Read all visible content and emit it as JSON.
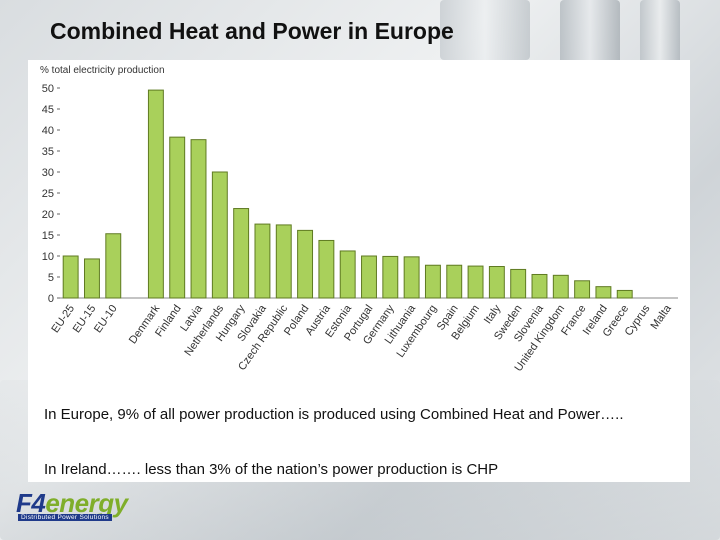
{
  "slide": {
    "title": "Combined Heat and Power in Europe",
    "paragraph_1": "In Europe, 9% of all power production is produced using Combined Heat and Power…..",
    "paragraph_2": "In Ireland……. less than 3% of the nation’s power production is CHP"
  },
  "logo": {
    "brand_f4": "F4",
    "brand_energy": "energy",
    "tagline": "Distributed Power Solutions"
  },
  "chart_data": {
    "type": "bar",
    "ylabel": "% total electricity production",
    "ylim": [
      0,
      50
    ],
    "yticks": [
      0,
      5,
      10,
      15,
      20,
      25,
      30,
      35,
      40,
      45,
      50
    ],
    "bar_color": "#a9d05b",
    "bar_edge_color": "#5f7a22",
    "categories": [
      "EU-25",
      "EU-15",
      "EU-10",
      "",
      "Denmark",
      "Finland",
      "Latvia",
      "Netherlands",
      "Hungary",
      "Slovakia",
      "Czech Republic",
      "Poland",
      "Austria",
      "Estonia",
      "Portugal",
      "Germany",
      "Lithuania",
      "Luxembourg",
      "Spain",
      "Belgium",
      "Italy",
      "Sweden",
      "Slovenia",
      "United Kingdom",
      "France",
      "Ireland",
      "Greece",
      "Cyprus",
      "Malta"
    ],
    "values": [
      10,
      9.3,
      15.3,
      null,
      49.5,
      38.3,
      37.7,
      30,
      21.3,
      17.6,
      17.4,
      16.1,
      13.7,
      11.2,
      10,
      9.9,
      9.8,
      7.8,
      7.8,
      7.6,
      7.5,
      6.8,
      5.6,
      5.4,
      4.1,
      2.7,
      1.8,
      0,
      0
    ]
  }
}
